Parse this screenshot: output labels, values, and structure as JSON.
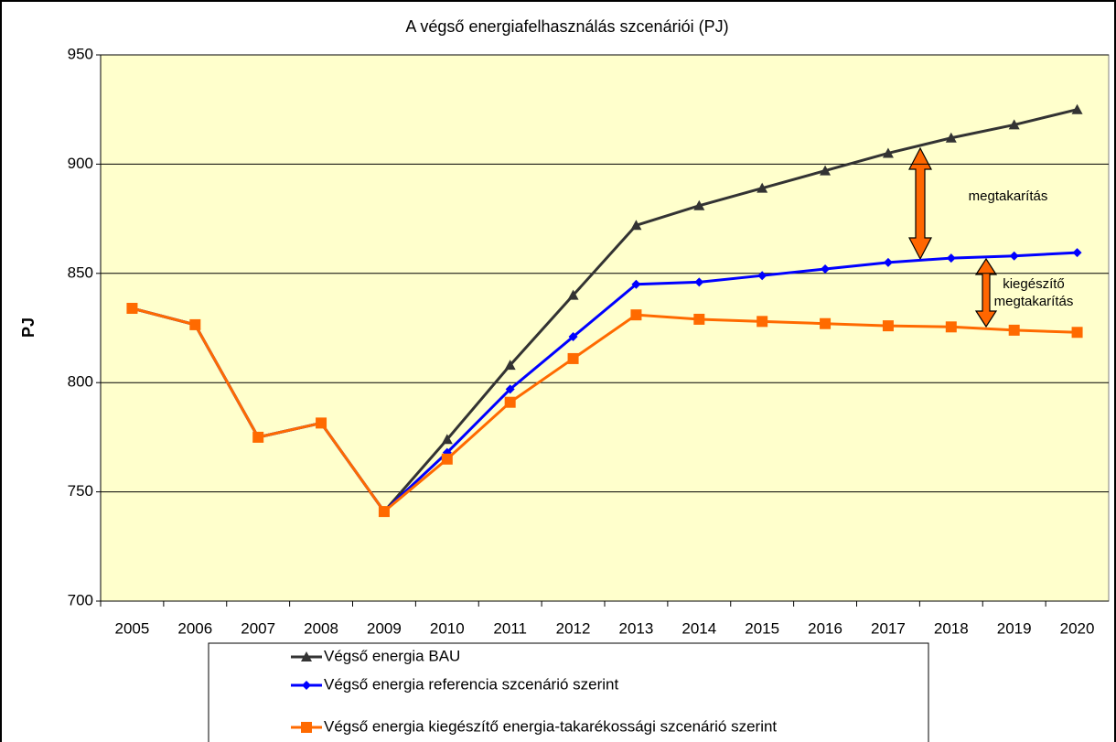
{
  "chart_data": {
    "type": "line",
    "title": "A végső energiafelhasználás szcenáriói (PJ)",
    "y_label": "PJ",
    "categories": [
      "2005",
      "2006",
      "2007",
      "2008",
      "2009",
      "2010",
      "2011",
      "2012",
      "2013",
      "2014",
      "2015",
      "2016",
      "2017",
      "2018",
      "2019",
      "2020"
    ],
    "series": [
      {
        "name": "Végső energia BAU",
        "color": "#333333",
        "marker": "triangle",
        "values": [
          834,
          826.5,
          775,
          781.5,
          741,
          774,
          808,
          840,
          872,
          881,
          889,
          897,
          905,
          912,
          918,
          925
        ]
      },
      {
        "name": "Végső energia referencia szcenárió szerint",
        "color": "#0000ff",
        "marker": "diamond",
        "values": [
          834,
          826.5,
          775,
          781.5,
          741,
          768,
          797,
          821,
          845,
          846,
          849,
          852,
          855,
          857,
          858,
          859.5
        ]
      },
      {
        "name": "Végső energia kiegészítő energia-takarékossági szcenárió szerint",
        "color": "#ff6a00",
        "marker": "square",
        "values": [
          834,
          826.5,
          775,
          781.5,
          741,
          765,
          791,
          811,
          831,
          829,
          828,
          827,
          826,
          825.5,
          824,
          823
        ]
      }
    ],
    "ylim": [
      700,
      950
    ],
    "yticks": [
      700,
      750,
      800,
      850,
      900,
      950
    ],
    "grid": true,
    "annotations": [
      {
        "lines": [
          "megtakarítás"
        ]
      },
      {
        "lines": [
          "kiegészítő",
          "megtakarítás"
        ]
      }
    ]
  }
}
